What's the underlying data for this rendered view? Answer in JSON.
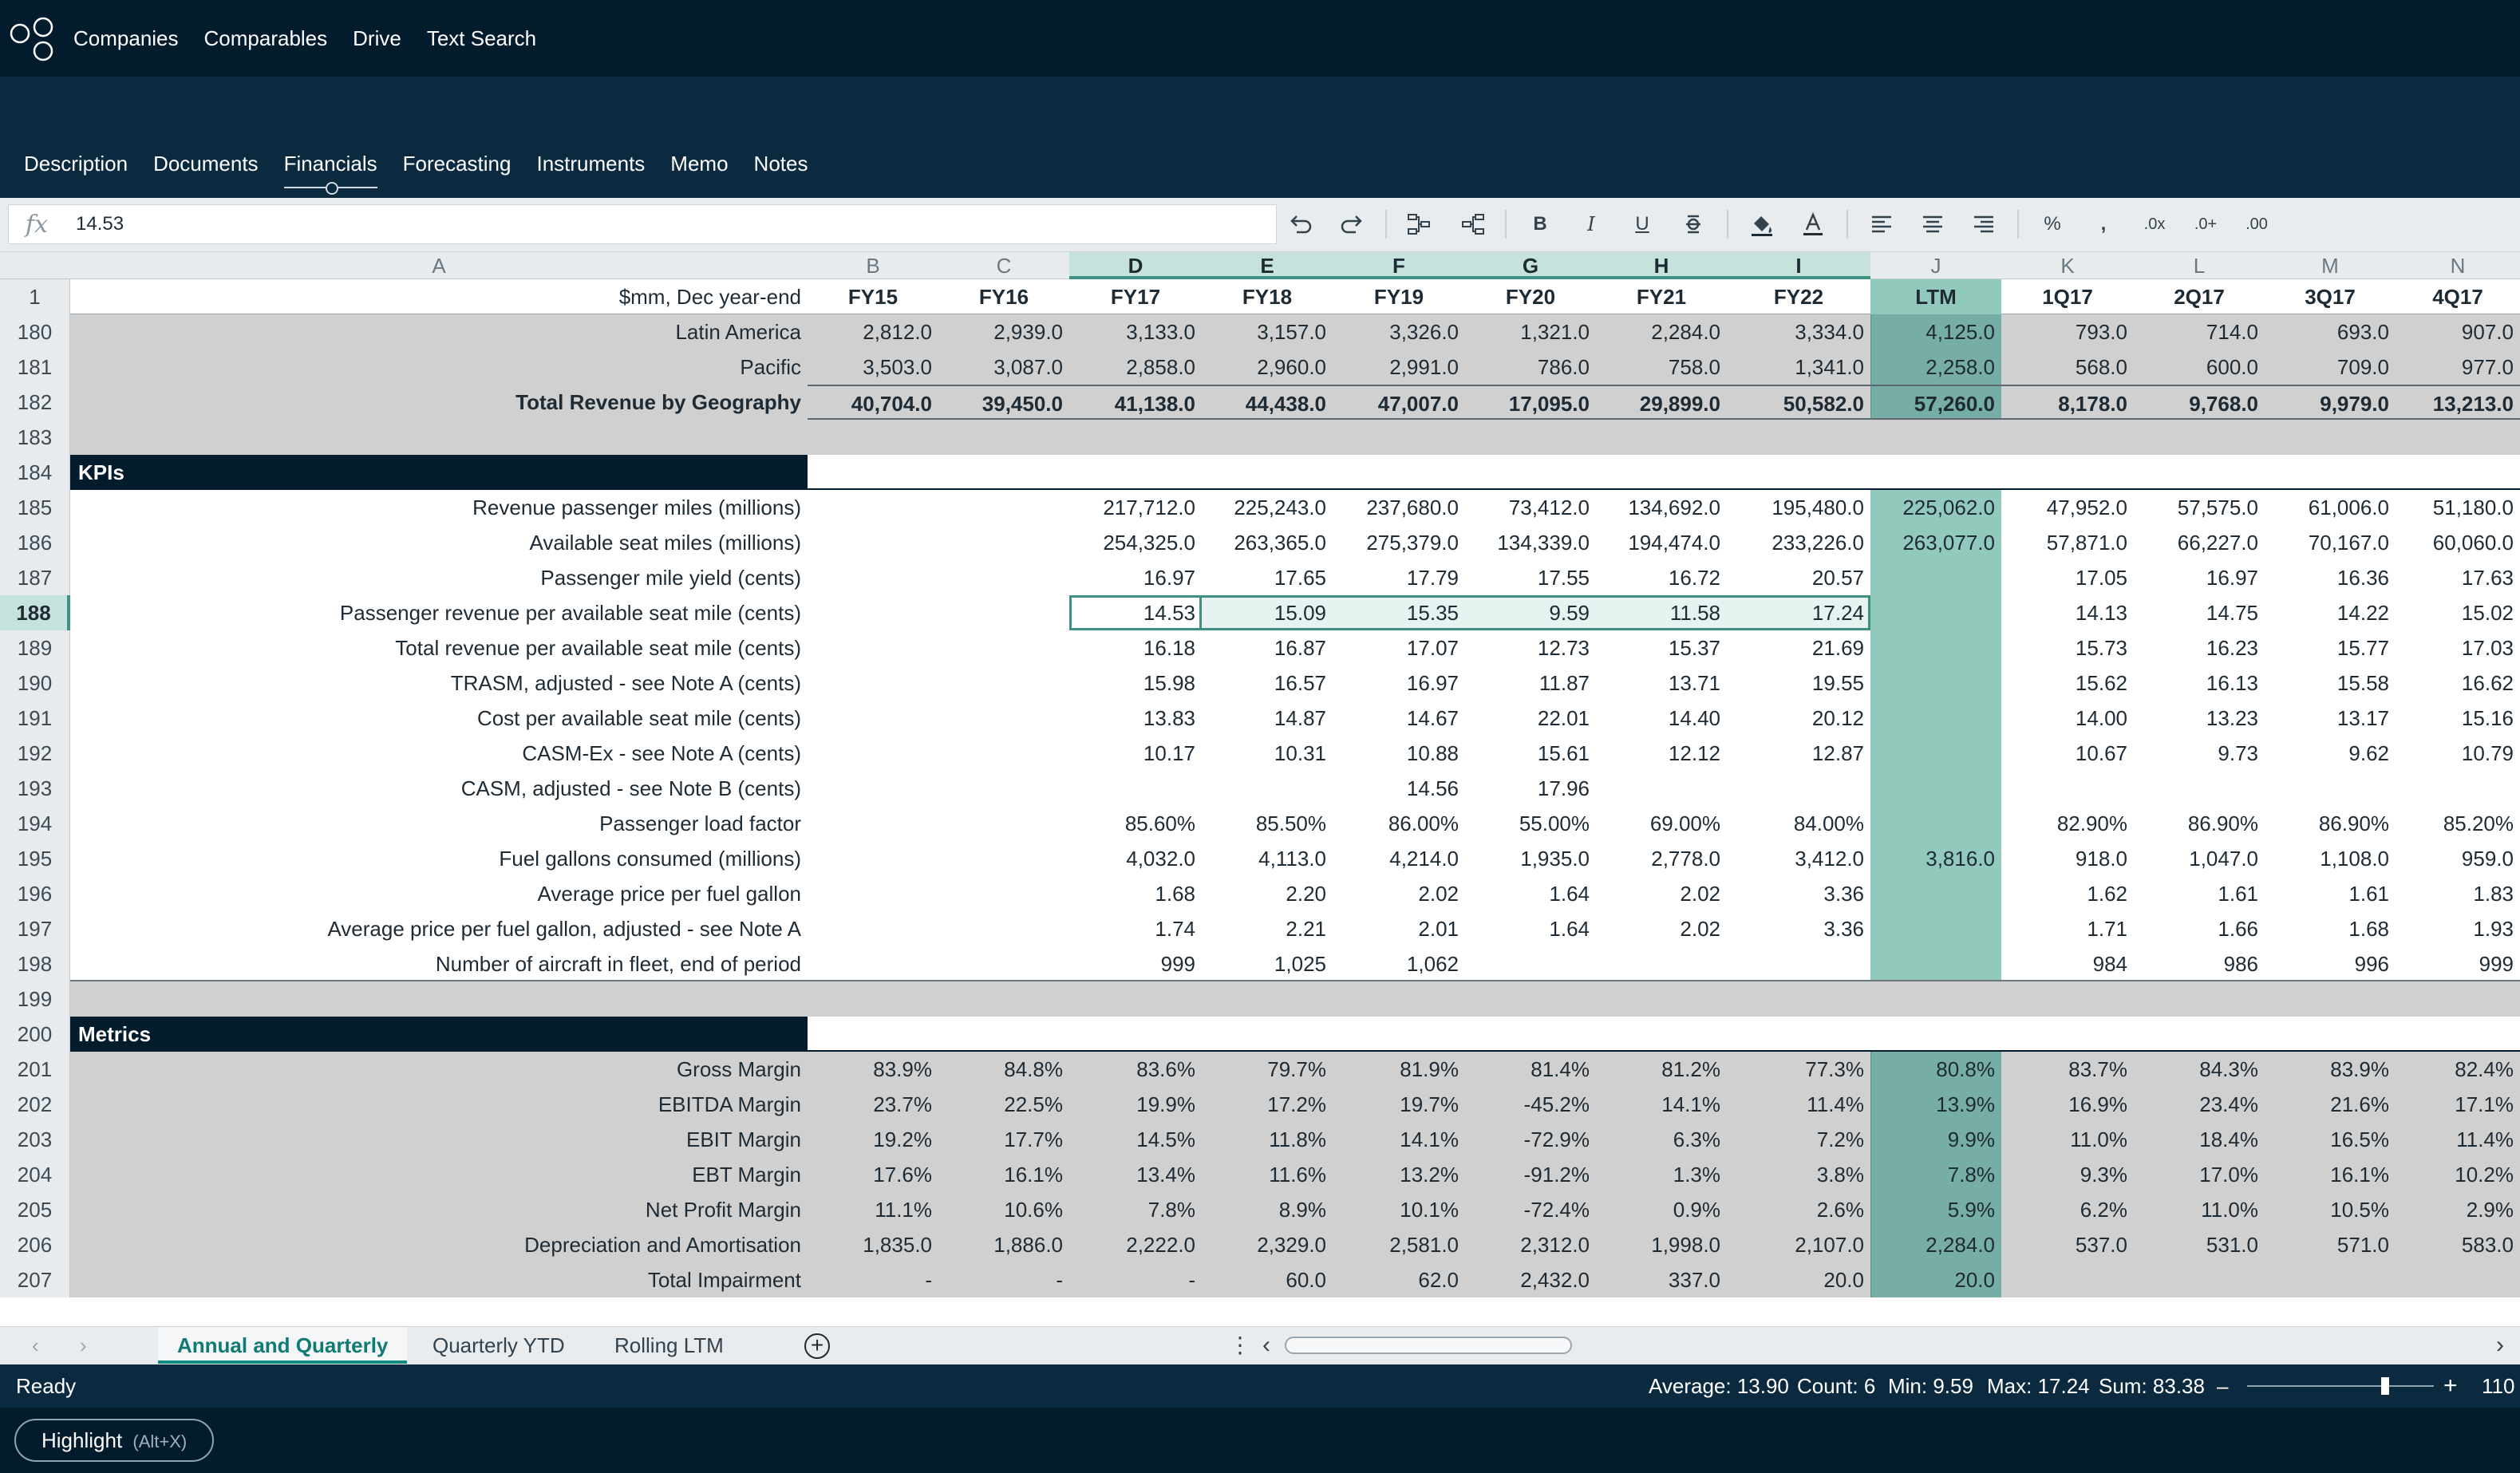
{
  "nav": {
    "links": [
      "Companies",
      "Comparables",
      "Drive",
      "Text Search"
    ]
  },
  "tabs": [
    "Description",
    "Documents",
    "Financials",
    "Forecasting",
    "Instruments",
    "Memo",
    "Notes"
  ],
  "active_tab": "Financials",
  "formula_bar": {
    "fx_symbol": "fx",
    "value": "14.53"
  },
  "toolbar": {
    "icons": [
      "undo-icon",
      "redo-icon",
      "group-rows-icon",
      "ungroup-rows-icon",
      "bold-icon",
      "italic-icon",
      "underline-icon",
      "strikethrough-icon",
      "fill-color-icon",
      "font-color-icon",
      "align-left-icon",
      "align-center-icon",
      "align-right-icon",
      "percent-icon",
      "comma-icon",
      "decrease-decimal-icon",
      "increase-decimal-icon",
      "more-decimal-icon"
    ],
    "labels": {
      "bold": "B",
      "italic": "I",
      "underline": "U",
      "percent": "%",
      "comma": ",",
      "decdec": ".0x",
      "incdec": ".0+",
      "moredec": ".00"
    }
  },
  "columns": [
    "A",
    "B",
    "C",
    "D",
    "E",
    "F",
    "G",
    "H",
    "I",
    "J",
    "K",
    "L",
    "M",
    "N"
  ],
  "header_row": {
    "num": "1",
    "cells": [
      "$mm, Dec year-end",
      "FY15",
      "FY16",
      "FY17",
      "FY18",
      "FY19",
      "FY20",
      "FY21",
      "FY22",
      "LTM",
      "1Q17",
      "2Q17",
      "3Q17",
      "4Q17"
    ]
  },
  "rows": [
    {
      "num": "180",
      "type": "data",
      "label": "Latin America",
      "values": [
        "2,812.0",
        "2,939.0",
        "3,133.0",
        "3,157.0",
        "3,326.0",
        "1,321.0",
        "2,284.0",
        "3,334.0",
        "4,125.0",
        "793.0",
        "714.0",
        "693.0",
        "907.0"
      ]
    },
    {
      "num": "181",
      "type": "data",
      "label": "Pacific",
      "values": [
        "3,503.0",
        "3,087.0",
        "2,858.0",
        "2,960.0",
        "2,991.0",
        "786.0",
        "758.0",
        "1,341.0",
        "2,258.0",
        "568.0",
        "600.0",
        "709.0",
        "977.0"
      ]
    },
    {
      "num": "182",
      "type": "total",
      "label": "Total Revenue by Geography",
      "values": [
        "40,704.0",
        "39,450.0",
        "41,138.0",
        "44,438.0",
        "47,007.0",
        "17,095.0",
        "29,899.0",
        "50,582.0",
        "57,260.0",
        "8,178.0",
        "9,768.0",
        "9,979.0",
        "13,213.0"
      ]
    },
    {
      "num": "183",
      "type": "blank"
    },
    {
      "num": "184",
      "type": "section",
      "label": "KPIs"
    },
    {
      "num": "185",
      "type": "kpi",
      "label": "Revenue passenger miles (millions)",
      "values": [
        "",
        "",
        "217,712.0",
        "225,243.0",
        "237,680.0",
        "73,412.0",
        "134,692.0",
        "195,480.0",
        "225,062.0",
        "47,952.0",
        "57,575.0",
        "61,006.0",
        "51,180.0"
      ]
    },
    {
      "num": "186",
      "type": "kpi",
      "label": "Available seat miles (millions)",
      "values": [
        "",
        "",
        "254,325.0",
        "263,365.0",
        "275,379.0",
        "134,339.0",
        "194,474.0",
        "233,226.0",
        "263,077.0",
        "57,871.0",
        "66,227.0",
        "70,167.0",
        "60,060.0"
      ]
    },
    {
      "num": "187",
      "type": "kpi",
      "label": "Passenger mile yield (cents)",
      "values": [
        "",
        "",
        "16.97",
        "17.65",
        "17.79",
        "17.55",
        "16.72",
        "20.57",
        "",
        "17.05",
        "16.97",
        "16.36",
        "17.63"
      ]
    },
    {
      "num": "188",
      "type": "kpi",
      "label": "Passenger revenue per available seat mile (cents)",
      "values": [
        "",
        "",
        "14.53",
        "15.09",
        "15.35",
        "9.59",
        "11.58",
        "17.24",
        "",
        "14.13",
        "14.75",
        "14.22",
        "15.02"
      ]
    },
    {
      "num": "189",
      "type": "kpi",
      "label": "Total revenue per available seat mile (cents)",
      "values": [
        "",
        "",
        "16.18",
        "16.87",
        "17.07",
        "12.73",
        "15.37",
        "21.69",
        "",
        "15.73",
        "16.23",
        "15.77",
        "17.03"
      ]
    },
    {
      "num": "190",
      "type": "kpi",
      "label": "TRASM, adjusted - see Note A (cents)",
      "values": [
        "",
        "",
        "15.98",
        "16.57",
        "16.97",
        "11.87",
        "13.71",
        "19.55",
        "",
        "15.62",
        "16.13",
        "15.58",
        "16.62"
      ]
    },
    {
      "num": "191",
      "type": "kpi",
      "label": "Cost per available seat mile (cents)",
      "values": [
        "",
        "",
        "13.83",
        "14.87",
        "14.67",
        "22.01",
        "14.40",
        "20.12",
        "",
        "14.00",
        "13.23",
        "13.17",
        "15.16"
      ]
    },
    {
      "num": "192",
      "type": "kpi",
      "label": "CASM-Ex - see Note A (cents)",
      "values": [
        "",
        "",
        "10.17",
        "10.31",
        "10.88",
        "15.61",
        "12.12",
        "12.87",
        "",
        "10.67",
        "9.73",
        "9.62",
        "10.79"
      ]
    },
    {
      "num": "193",
      "type": "kpi",
      "label": "CASM, adjusted - see Note B (cents)",
      "values": [
        "",
        "",
        "",
        "",
        "14.56",
        "17.96",
        "",
        "",
        "",
        "",
        "",
        "",
        ""
      ]
    },
    {
      "num": "194",
      "type": "kpi",
      "label": "Passenger load factor",
      "values": [
        "",
        "",
        "85.60%",
        "85.50%",
        "86.00%",
        "55.00%",
        "69.00%",
        "84.00%",
        "",
        "82.90%",
        "86.90%",
        "86.90%",
        "85.20%"
      ]
    },
    {
      "num": "195",
      "type": "kpi",
      "label": "Fuel gallons consumed (millions)",
      "values": [
        "",
        "",
        "4,032.0",
        "4,113.0",
        "4,214.0",
        "1,935.0",
        "2,778.0",
        "3,412.0",
        "3,816.0",
        "918.0",
        "1,047.0",
        "1,108.0",
        "959.0"
      ]
    },
    {
      "num": "196",
      "type": "kpi",
      "label": "Average price per fuel gallon",
      "values": [
        "",
        "",
        "1.68",
        "2.20",
        "2.02",
        "1.64",
        "2.02",
        "3.36",
        "",
        "1.62",
        "1.61",
        "1.61",
        "1.83"
      ]
    },
    {
      "num": "197",
      "type": "kpi",
      "label": "Average price per fuel gallon, adjusted - see Note A",
      "values": [
        "",
        "",
        "1.74",
        "2.21",
        "2.01",
        "1.64",
        "2.02",
        "3.36",
        "",
        "1.71",
        "1.66",
        "1.68",
        "1.93"
      ]
    },
    {
      "num": "198",
      "type": "kpi",
      "label": "Number of aircraft in fleet, end of period",
      "values": [
        "",
        "",
        "999",
        "1,025",
        "1,062",
        "",
        "",
        "",
        "",
        "984",
        "986",
        "996",
        "999"
      ]
    },
    {
      "num": "199",
      "type": "blank"
    },
    {
      "num": "200",
      "type": "section",
      "label": "Metrics"
    },
    {
      "num": "201",
      "type": "data",
      "label": "Gross Margin",
      "values": [
        "83.9%",
        "84.8%",
        "83.6%",
        "79.7%",
        "81.9%",
        "81.4%",
        "81.2%",
        "77.3%",
        "80.8%",
        "83.7%",
        "84.3%",
        "83.9%",
        "82.4%"
      ]
    },
    {
      "num": "202",
      "type": "data",
      "label": "EBITDA Margin",
      "values": [
        "23.7%",
        "22.5%",
        "19.9%",
        "17.2%",
        "19.7%",
        "-45.2%",
        "14.1%",
        "11.4%",
        "13.9%",
        "16.9%",
        "23.4%",
        "21.6%",
        "17.1%"
      ]
    },
    {
      "num": "203",
      "type": "data",
      "label": "EBIT Margin",
      "values": [
        "19.2%",
        "17.7%",
        "14.5%",
        "11.8%",
        "14.1%",
        "-72.9%",
        "6.3%",
        "7.2%",
        "9.9%",
        "11.0%",
        "18.4%",
        "16.5%",
        "11.4%"
      ]
    },
    {
      "num": "204",
      "type": "data",
      "label": "EBT Margin",
      "values": [
        "17.6%",
        "16.1%",
        "13.4%",
        "11.6%",
        "13.2%",
        "-91.2%",
        "1.3%",
        "3.8%",
        "7.8%",
        "9.3%",
        "17.0%",
        "16.1%",
        "10.2%"
      ]
    },
    {
      "num": "205",
      "type": "data",
      "label": "Net Profit Margin",
      "values": [
        "11.1%",
        "10.6%",
        "7.8%",
        "8.9%",
        "10.1%",
        "-72.4%",
        "0.9%",
        "2.6%",
        "5.9%",
        "6.2%",
        "11.0%",
        "10.5%",
        "2.9%"
      ]
    },
    {
      "num": "206",
      "type": "data",
      "label": "Depreciation and Amortisation",
      "values": [
        "1,835.0",
        "1,886.0",
        "2,222.0",
        "2,329.0",
        "2,581.0",
        "2,312.0",
        "1,998.0",
        "2,107.0",
        "2,284.0",
        "537.0",
        "531.0",
        "571.0",
        "583.0"
      ]
    },
    {
      "num": "207",
      "type": "data",
      "label": "Total Impairment",
      "values": [
        "-",
        "-",
        "-",
        "60.0",
        "62.0",
        "2,432.0",
        "337.0",
        "20.0",
        "20.0",
        "",
        "",
        "",
        ""
      ]
    }
  ],
  "sheet_tabs": [
    "Annual and Quarterly",
    "Quarterly YTD",
    "Rolling LTM"
  ],
  "active_sheet": "Annual and Quarterly",
  "status": {
    "ready": "Ready",
    "average": "Average: 13.90",
    "count": "Count: 6",
    "min": "Min: 9.59",
    "max": "Max: 17.24",
    "sum": "Sum: 83.38",
    "zoom": "110"
  },
  "highlight": {
    "label": "Highlight",
    "shortcut": "(Alt+X)"
  },
  "colors": {
    "navy": "#031c2d",
    "banner": "#0b2a40",
    "ltm_teal": "#92c9bd",
    "ltm_dark": "#76ada4",
    "selected_header": "#c6e2dc",
    "data_gray": "#d0d0d0",
    "selection_border": "#3f8f82"
  }
}
